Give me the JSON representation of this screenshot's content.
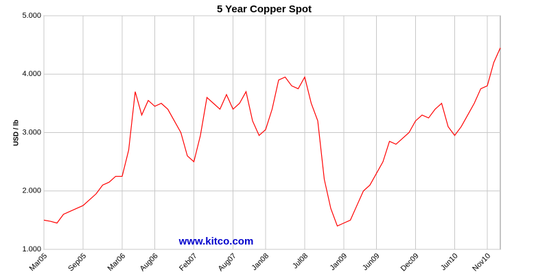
{
  "chart_data": {
    "type": "line",
    "title": "5  Year Copper Spot",
    "y_label": "USD / lb",
    "watermark": "www.kitco.com",
    "x": [
      "2005-03",
      "2005-04",
      "2005-05",
      "2005-06",
      "2005-07",
      "2005-08",
      "2005-09",
      "2005-10",
      "2005-11",
      "2005-12",
      "2006-01",
      "2006-02",
      "2006-03",
      "2006-04",
      "2006-05",
      "2006-06",
      "2006-07",
      "2006-08",
      "2006-09",
      "2006-10",
      "2006-11",
      "2006-12",
      "2007-01",
      "2007-02",
      "2007-03",
      "2007-04",
      "2007-05",
      "2007-06",
      "2007-07",
      "2007-08",
      "2007-09",
      "2007-10",
      "2007-11",
      "2007-12",
      "2008-01",
      "2008-02",
      "2008-03",
      "2008-04",
      "2008-05",
      "2008-06",
      "2008-07",
      "2008-08",
      "2008-09",
      "2008-10",
      "2008-11",
      "2008-12",
      "2009-01",
      "2009-02",
      "2009-03",
      "2009-04",
      "2009-05",
      "2009-06",
      "2009-07",
      "2009-08",
      "2009-09",
      "2009-10",
      "2009-11",
      "2009-12",
      "2010-01",
      "2010-02",
      "2010-03",
      "2010-04",
      "2010-05",
      "2010-06",
      "2010-07",
      "2010-08",
      "2010-09",
      "2010-10",
      "2010-11",
      "2010-12",
      "2011-01"
    ],
    "series": [
      {
        "name": "Copper",
        "color": "#ff0000",
        "values": [
          1.5,
          1.48,
          1.45,
          1.6,
          1.65,
          1.7,
          1.75,
          1.85,
          1.95,
          2.1,
          2.15,
          2.25,
          2.25,
          2.7,
          3.7,
          3.3,
          3.55,
          3.45,
          3.5,
          3.4,
          3.2,
          3.0,
          2.6,
          2.5,
          2.95,
          3.6,
          3.5,
          3.4,
          3.65,
          3.4,
          3.5,
          3.7,
          3.2,
          2.95,
          3.05,
          3.4,
          3.9,
          3.95,
          3.8,
          3.75,
          3.95,
          3.5,
          3.2,
          2.2,
          1.7,
          1.4,
          1.45,
          1.5,
          1.75,
          2.0,
          2.1,
          2.3,
          2.5,
          2.85,
          2.8,
          2.9,
          3.0,
          3.2,
          3.3,
          3.25,
          3.4,
          3.5,
          3.1,
          2.95,
          3.1,
          3.3,
          3.5,
          3.75,
          3.8,
          4.2,
          4.45
        ]
      }
    ],
    "xlim": [
      "2005-03",
      "2011-01"
    ],
    "xticks": [
      {
        "value": "2005-03",
        "label": "Mar05"
      },
      {
        "value": "2005-09",
        "label": "Sep05"
      },
      {
        "value": "2006-03",
        "label": "Mar06"
      },
      {
        "value": "2006-08",
        "label": "Aug06"
      },
      {
        "value": "2007-02",
        "label": "Feb07"
      },
      {
        "value": "2007-08",
        "label": "Aug07"
      },
      {
        "value": "2008-01",
        "label": "Jan08"
      },
      {
        "value": "2008-07",
        "label": "Jul08"
      },
      {
        "value": "2009-01",
        "label": "Jan09"
      },
      {
        "value": "2009-06",
        "label": "Jun09"
      },
      {
        "value": "2009-12",
        "label": "Dec09"
      },
      {
        "value": "2010-06",
        "label": "Jun10"
      },
      {
        "value": "2010-11",
        "label": "Nov10"
      }
    ],
    "ylim": [
      1,
      5
    ],
    "yticks": [
      {
        "value": 1,
        "label": "1.000"
      },
      {
        "value": 2,
        "label": "2.000"
      },
      {
        "value": 3,
        "label": "3.000"
      },
      {
        "value": 4,
        "label": "4.000"
      },
      {
        "value": 5,
        "label": "5.000"
      }
    ],
    "grid": true
  }
}
